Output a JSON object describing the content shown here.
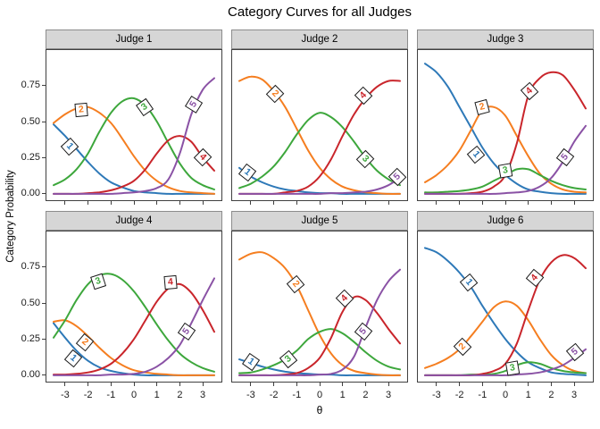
{
  "chart_data": {
    "type": "line",
    "title": "Category Curves for all Judges",
    "xlabel": "θ",
    "ylabel": "Category  Probability",
    "x_ticks": [
      -3,
      -2,
      -1,
      0,
      1,
      2,
      3
    ],
    "y_ticks": [
      "0.00",
      "0.25",
      "0.50",
      "0.75"
    ],
    "xlim": [
      -3.85,
      3.85
    ],
    "ylim": [
      -0.05,
      1.0
    ],
    "grid": "off",
    "legend": "direct-labels-in-boxes",
    "theta": [
      -3.5,
      -3,
      -2.5,
      -2,
      -1.5,
      -1,
      -0.5,
      0,
      0.5,
      1,
      1.5,
      2,
      2.5,
      3,
      3.5
    ],
    "categories": [
      "1",
      "2",
      "3",
      "4",
      "5"
    ],
    "colors": {
      "1": "#2E79B8",
      "2": "#F57E20",
      "3": "#3DA73C",
      "4": "#C9252B",
      "5": "#8A52A5"
    },
    "strip_bg": "#D6D6D6",
    "panels": [
      {
        "judge": "Judge 1",
        "series": {
          "1": [
            0.48,
            0.4,
            0.31,
            0.22,
            0.14,
            0.08,
            0.045,
            0.02,
            0.01,
            0.005,
            0,
            0,
            0,
            0,
            0
          ],
          "2": [
            0.49,
            0.55,
            0.59,
            0.6,
            0.56,
            0.49,
            0.38,
            0.26,
            0.16,
            0.09,
            0.045,
            0.02,
            0.01,
            0.005,
            0
          ],
          "3": [
            0.06,
            0.1,
            0.17,
            0.28,
            0.43,
            0.56,
            0.64,
            0.66,
            0.61,
            0.5,
            0.35,
            0.21,
            0.11,
            0.06,
            0.03
          ],
          "4": [
            0,
            0,
            0,
            0.005,
            0.01,
            0.025,
            0.05,
            0.09,
            0.17,
            0.28,
            0.37,
            0.4,
            0.36,
            0.25,
            0.16
          ],
          "5": [
            0,
            0,
            0,
            0,
            0,
            0,
            0.005,
            0.01,
            0.02,
            0.04,
            0.1,
            0.28,
            0.55,
            0.72,
            0.8
          ]
        },
        "labels": [
          {
            "cat": "1",
            "theta": -2.8,
            "p": 0.33,
            "rot": 48
          },
          {
            "cat": "2",
            "theta": -2.3,
            "p": 0.58,
            "rot": -5
          },
          {
            "cat": "3",
            "theta": 0.45,
            "p": 0.6,
            "rot": -35
          },
          {
            "cat": "4",
            "theta": 3.0,
            "p": 0.25,
            "rot": 45
          },
          {
            "cat": "5",
            "theta": 2.6,
            "p": 0.62,
            "rot": -58
          }
        ]
      },
      {
        "judge": "Judge 2",
        "series": {
          "1": [
            0.18,
            0.12,
            0.08,
            0.05,
            0.03,
            0.02,
            0.01,
            0.005,
            0.005,
            0,
            0,
            0,
            0,
            0,
            0
          ],
          "2": [
            0.78,
            0.81,
            0.79,
            0.71,
            0.6,
            0.45,
            0.3,
            0.18,
            0.1,
            0.05,
            0.025,
            0.01,
            0.005,
            0,
            0
          ],
          "3": [
            0.04,
            0.07,
            0.12,
            0.19,
            0.29,
            0.41,
            0.51,
            0.56,
            0.53,
            0.46,
            0.36,
            0.25,
            0.16,
            0.1,
            0.06
          ],
          "4": [
            0,
            0,
            0,
            0,
            0.01,
            0.02,
            0.05,
            0.12,
            0.24,
            0.4,
            0.55,
            0.66,
            0.74,
            0.78,
            0.78
          ],
          "5": [
            0,
            0,
            0,
            0,
            0,
            0,
            0,
            0,
            0.005,
            0.005,
            0.01,
            0.015,
            0.03,
            0.06,
            0.11
          ]
        },
        "labels": [
          {
            "cat": "1",
            "theta": -3.15,
            "p": 0.15,
            "rot": 38
          },
          {
            "cat": "2",
            "theta": -1.95,
            "p": 0.69,
            "rot": 45
          },
          {
            "cat": "3",
            "theta": 2.0,
            "p": 0.24,
            "rot": 45
          },
          {
            "cat": "4",
            "theta": 1.9,
            "p": 0.68,
            "rot": -45
          },
          {
            "cat": "5",
            "theta": 3.4,
            "p": 0.12,
            "rot": -45
          }
        ]
      },
      {
        "judge": "Judge 3",
        "series": {
          "1": [
            0.9,
            0.84,
            0.74,
            0.6,
            0.46,
            0.32,
            0.21,
            0.13,
            0.07,
            0.03,
            0.015,
            0.005,
            0,
            0,
            0
          ],
          "2": [
            0.08,
            0.13,
            0.2,
            0.3,
            0.44,
            0.58,
            0.6,
            0.54,
            0.4,
            0.26,
            0.14,
            0.07,
            0.03,
            0.015,
            0.01
          ],
          "3": [
            0.01,
            0.01,
            0.015,
            0.02,
            0.03,
            0.05,
            0.09,
            0.13,
            0.17,
            0.17,
            0.13,
            0.09,
            0.06,
            0.04,
            0.03
          ],
          "4": [
            0,
            0,
            0,
            0,
            0.005,
            0.015,
            0.05,
            0.13,
            0.35,
            0.68,
            0.8,
            0.84,
            0.82,
            0.72,
            0.59
          ],
          "5": [
            0,
            0,
            0,
            0,
            0,
            0,
            0,
            0.005,
            0.01,
            0.02,
            0.05,
            0.11,
            0.22,
            0.36,
            0.47
          ]
        },
        "labels": [
          {
            "cat": "1",
            "theta": -1.3,
            "p": 0.27,
            "rot": 50
          },
          {
            "cat": "2",
            "theta": -1.0,
            "p": 0.6,
            "rot": -15
          },
          {
            "cat": "3",
            "theta": 0.0,
            "p": 0.16,
            "rot": -10
          },
          {
            "cat": "4",
            "theta": 1.05,
            "p": 0.71,
            "rot": -42
          },
          {
            "cat": "5",
            "theta": 2.6,
            "p": 0.25,
            "rot": -52
          }
        ]
      },
      {
        "judge": "Judge 4",
        "series": {
          "1": [
            0.36,
            0.26,
            0.17,
            0.1,
            0.055,
            0.03,
            0.015,
            0.005,
            0,
            0,
            0,
            0,
            0,
            0,
            0
          ],
          "2": [
            0.37,
            0.38,
            0.34,
            0.27,
            0.19,
            0.12,
            0.07,
            0.035,
            0.02,
            0.01,
            0.005,
            0,
            0,
            0,
            0
          ],
          "3": [
            0.26,
            0.38,
            0.52,
            0.63,
            0.69,
            0.7,
            0.66,
            0.58,
            0.47,
            0.35,
            0.24,
            0.15,
            0.09,
            0.05,
            0.025
          ],
          "4": [
            0.005,
            0.005,
            0.01,
            0.02,
            0.04,
            0.08,
            0.15,
            0.25,
            0.38,
            0.51,
            0.6,
            0.63,
            0.57,
            0.45,
            0.3
          ],
          "5": [
            0,
            0,
            0,
            0,
            0,
            0.005,
            0.005,
            0.01,
            0.025,
            0.06,
            0.12,
            0.21,
            0.36,
            0.52,
            0.67
          ]
        },
        "labels": [
          {
            "cat": "1",
            "theta": -2.65,
            "p": 0.12,
            "rot": 40
          },
          {
            "cat": "2",
            "theta": -2.15,
            "p": 0.23,
            "rot": 40
          },
          {
            "cat": "3",
            "theta": -1.55,
            "p": 0.65,
            "rot": -18
          },
          {
            "cat": "4",
            "theta": 1.6,
            "p": 0.64,
            "rot": -5
          },
          {
            "cat": "5",
            "theta": 2.3,
            "p": 0.3,
            "rot": -55
          }
        ]
      },
      {
        "judge": "Judge 5",
        "series": {
          "1": [
            0.11,
            0.085,
            0.06,
            0.04,
            0.025,
            0.015,
            0.01,
            0.005,
            0.005,
            0,
            0,
            0,
            0,
            0,
            0
          ],
          "2": [
            0.8,
            0.84,
            0.85,
            0.81,
            0.74,
            0.62,
            0.45,
            0.28,
            0.15,
            0.07,
            0.03,
            0.015,
            0.005,
            0,
            0
          ],
          "3": [
            0.015,
            0.02,
            0.04,
            0.07,
            0.11,
            0.17,
            0.25,
            0.3,
            0.32,
            0.29,
            0.23,
            0.16,
            0.1,
            0.06,
            0.04
          ],
          "4": [
            0,
            0,
            0,
            0,
            0.005,
            0.015,
            0.05,
            0.12,
            0.26,
            0.44,
            0.54,
            0.52,
            0.43,
            0.32,
            0.22
          ],
          "5": [
            0,
            0,
            0,
            0,
            0,
            0,
            0,
            0.005,
            0.01,
            0.04,
            0.13,
            0.33,
            0.52,
            0.65,
            0.73
          ]
        },
        "labels": [
          {
            "cat": "1",
            "theta": -3.0,
            "p": 0.09,
            "rot": 35
          },
          {
            "cat": "2",
            "theta": -1.05,
            "p": 0.63,
            "rot": 50
          },
          {
            "cat": "3",
            "theta": -1.35,
            "p": 0.11,
            "rot": -40
          },
          {
            "cat": "4",
            "theta": 1.1,
            "p": 0.53,
            "rot": -45
          },
          {
            "cat": "5",
            "theta": 1.9,
            "p": 0.3,
            "rot": -50
          }
        ]
      },
      {
        "judge": "Judge 6",
        "series": {
          "1": [
            0.88,
            0.85,
            0.79,
            0.71,
            0.61,
            0.48,
            0.36,
            0.25,
            0.16,
            0.09,
            0.05,
            0.02,
            0.01,
            0.005,
            0
          ],
          "2": [
            0.05,
            0.08,
            0.12,
            0.18,
            0.27,
            0.37,
            0.47,
            0.51,
            0.48,
            0.38,
            0.25,
            0.14,
            0.07,
            0.03,
            0.015
          ],
          "3": [
            0,
            0,
            0,
            0,
            0.005,
            0.005,
            0.01,
            0.03,
            0.07,
            0.09,
            0.08,
            0.05,
            0.03,
            0.02,
            0.015
          ],
          "4": [
            0,
            0,
            0,
            0,
            0,
            0.01,
            0.03,
            0.08,
            0.22,
            0.45,
            0.66,
            0.78,
            0.83,
            0.81,
            0.74
          ],
          "5": [
            0,
            0,
            0,
            0,
            0,
            0,
            0,
            0,
            0.005,
            0.01,
            0.02,
            0.04,
            0.07,
            0.12,
            0.18
          ]
        },
        "labels": [
          {
            "cat": "1",
            "theta": -1.6,
            "p": 0.64,
            "rot": 50
          },
          {
            "cat": "2",
            "theta": -1.85,
            "p": 0.2,
            "rot": -45
          },
          {
            "cat": "3",
            "theta": 0.3,
            "p": 0.05,
            "rot": -10
          },
          {
            "cat": "4",
            "theta": 1.3,
            "p": 0.67,
            "rot": -50
          },
          {
            "cat": "5",
            "theta": 3.05,
            "p": 0.16,
            "rot": -40
          }
        ]
      }
    ]
  }
}
